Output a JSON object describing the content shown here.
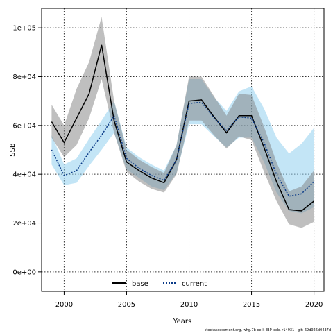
{
  "chart_data": {
    "type": "line",
    "title": "",
    "xlabel": "Years",
    "ylabel": "SSB",
    "xlim": [
      1998.2,
      2020.8
    ],
    "ylim": [
      -8000,
      108000
    ],
    "x_ticks": [
      2000,
      2005,
      2010,
      2015,
      2020
    ],
    "x_tick_labels": [
      "2000",
      "2005",
      "2010",
      "2015",
      "2020"
    ],
    "y_ticks": [
      0,
      20000,
      40000,
      60000,
      80000,
      100000
    ],
    "y_tick_labels": [
      "0e+00",
      "2e+04",
      "4e+04",
      "6e+04",
      "8e+04",
      "1e+05"
    ],
    "grid": true,
    "legend_position": "bottom",
    "x": [
      1999,
      2000,
      2001,
      2002,
      2003,
      2004,
      2005,
      2006,
      2007,
      2008,
      2009,
      2010,
      2011,
      2012,
      2013,
      2014,
      2015,
      2016,
      2017,
      2018,
      2019,
      2020
    ],
    "series": [
      {
        "name": "base",
        "color": "#000000",
        "line": "solid",
        "band_color": "#808080",
        "values": [
          61500,
          53000,
          63000,
          73000,
          93000,
          62000,
          45000,
          41500,
          38500,
          36500,
          46000,
          70000,
          70500,
          63500,
          57000,
          64000,
          64000,
          51000,
          37000,
          25500,
          25000,
          29000
        ],
        "lower": [
          55000,
          47000,
          52000,
          63000,
          79000,
          57000,
          41000,
          37000,
          34000,
          32500,
          40000,
          62000,
          62000,
          56000,
          50500,
          55500,
          54000,
          41000,
          29000,
          19500,
          18000,
          20500
        ],
        "upper": [
          68500,
          60000,
          75000,
          86000,
          104500,
          70000,
          50000,
          46000,
          43000,
          40500,
          52000,
          80000,
          80000,
          72000,
          64000,
          73000,
          72500,
          59500,
          45000,
          33000,
          35000,
          41500
        ]
      },
      {
        "name": "current",
        "color": "#0b3b88",
        "line": "dotted",
        "band_color": "#87cbee",
        "values": [
          50000,
          39500,
          41500,
          49000,
          56000,
          64000,
          46500,
          42500,
          39500,
          37500,
          46000,
          69000,
          69500,
          63000,
          58000,
          63500,
          63000,
          53000,
          40000,
          31000,
          32000,
          37000
        ],
        "lower": [
          44000,
          35500,
          36500,
          43500,
          50000,
          57000,
          42000,
          38500,
          35000,
          33500,
          40500,
          60500,
          60500,
          55500,
          51000,
          55000,
          55000,
          45000,
          32500,
          25000,
          24000,
          26500
        ],
        "upper": [
          56000,
          44000,
          46500,
          54500,
          62000,
          70000,
          51000,
          47000,
          44000,
          41500,
          52000,
          79000,
          79000,
          71500,
          66000,
          74000,
          76000,
          67000,
          55000,
          48500,
          52500,
          59000
        ]
      }
    ]
  },
  "footer_text": "stockassessment.org, whg.7b-ce-k_IBP_ceb, r14931 , git: 69d926d0437d"
}
